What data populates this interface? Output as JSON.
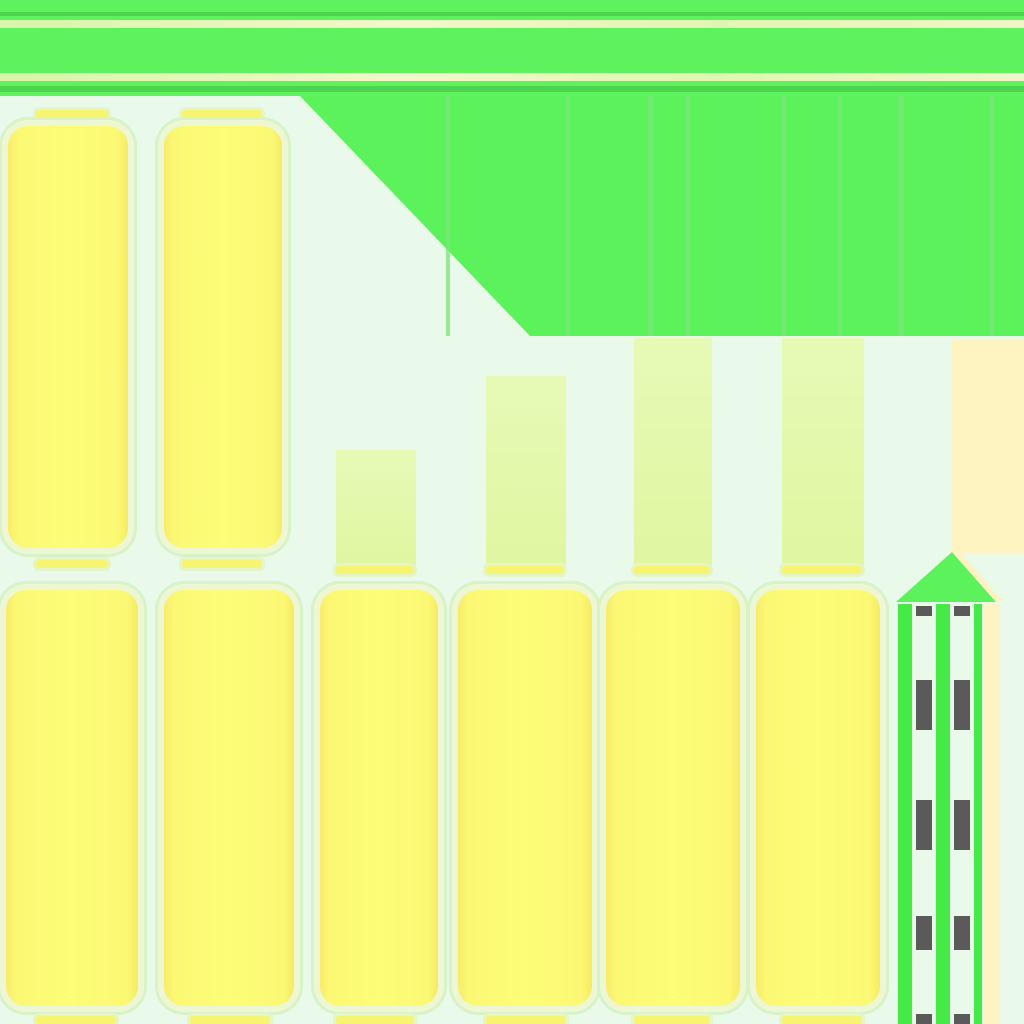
{
  "texture": {
    "colors": {
      "green": "#5cf25c",
      "mint": "#e9f9ea",
      "yellow": "#fdfd78",
      "cream": "#fdf4c2",
      "dash": "#5a5a5a"
    }
  }
}
